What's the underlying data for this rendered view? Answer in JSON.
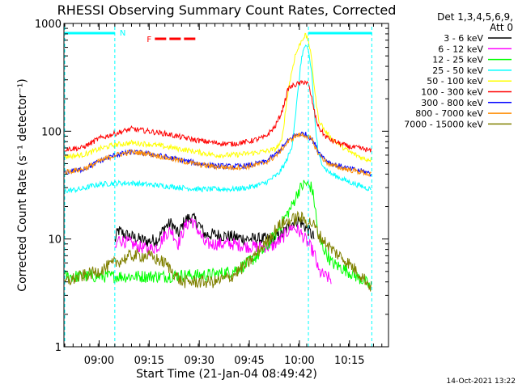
{
  "chart_data": {
    "type": "line",
    "title": "RHESSI Observing Summary Count Rates, Corrected",
    "xlabel": "Start Time (21-Jan-04 08:49:42)",
    "ylabel": "Corrected Count Rate (s⁻¹ detector⁻¹)",
    "yscale": "log",
    "ylim": [
      1,
      1000
    ],
    "xlim": [
      0,
      97
    ],
    "x_unit": "minutes after 08:49:42",
    "y_tick_labels": [
      "1",
      "10",
      "100",
      "1000"
    ],
    "x_tick_labels": [
      "09:00",
      "09:15",
      "09:30",
      "09:45",
      "10:00",
      "10:15"
    ],
    "x_tick_positions": [
      10.3,
      25.3,
      40.3,
      55.3,
      70.3,
      85.3
    ],
    "detector_line1": "Det 1,3,4,5,6,9,",
    "detector_line2": "Att 0",
    "timestamp": "14-Oct-2021 13:22",
    "night_label": "N",
    "flare_label": "F",
    "night_intervals": [
      [
        0,
        15
      ],
      [
        73,
        92
      ]
    ],
    "flare_interval": [
      27,
      40
    ],
    "series": [
      {
        "name": "3 - 6 keV",
        "color": "#000000",
        "x": [
          15,
          16,
          18,
          20,
          22,
          25,
          28,
          30,
          32,
          34,
          36,
          38,
          40,
          42,
          45,
          50,
          55,
          60,
          62,
          65,
          67,
          68,
          70,
          72,
          74,
          75
        ],
        "values": [
          9.5,
          12,
          11,
          10.5,
          10,
          9.5,
          10,
          13,
          14,
          11,
          15,
          16,
          14,
          11,
          11,
          10.5,
          10,
          10,
          10,
          11,
          13,
          14,
          15,
          13,
          11,
          10
        ]
      },
      {
        "name": "6 - 12 keV",
        "color": "#ff00ff",
        "x": [
          15,
          16,
          18,
          20,
          22,
          25,
          28,
          30,
          32,
          34,
          36,
          38,
          40,
          42,
          45,
          50,
          55,
          60,
          62,
          65,
          67,
          68,
          70,
          72,
          74,
          75,
          76,
          78,
          80
        ],
        "values": [
          7.5,
          10,
          9.5,
          9,
          8.5,
          8,
          8.5,
          11,
          12,
          9,
          13,
          15,
          12,
          9,
          9,
          9,
          8.5,
          8.5,
          8.5,
          10,
          12,
          13,
          12,
          10,
          8,
          7,
          5,
          4.5,
          4.2
        ]
      },
      {
        "name": "12 - 25 keV",
        "color": "#00ff00",
        "x": [
          0,
          5,
          10,
          15,
          20,
          25,
          30,
          35,
          40,
          45,
          50,
          55,
          60,
          63,
          65,
          68,
          70,
          72,
          74,
          75,
          76,
          80,
          85,
          90,
          92
        ],
        "values": [
          4.5,
          4.5,
          4.5,
          4.5,
          4.5,
          4.5,
          4.5,
          4.6,
          4.6,
          4.7,
          5,
          6,
          8,
          11,
          14,
          20,
          28,
          33,
          30,
          20,
          10,
          6,
          5,
          4,
          3.5
        ]
      },
      {
        "name": "25 - 50 keV",
        "color": "#00ffff",
        "x": [
          0,
          5,
          8,
          10,
          15,
          20,
          25,
          30,
          35,
          40,
          45,
          50,
          55,
          60,
          64,
          66,
          68,
          70,
          71,
          72,
          73,
          74,
          75,
          76,
          78,
          80,
          85,
          90,
          92
        ],
        "values": [
          28,
          29,
          31,
          32,
          33,
          33,
          32,
          31,
          30,
          29,
          29,
          29,
          30,
          33,
          40,
          50,
          70,
          250,
          500,
          620,
          550,
          350,
          120,
          60,
          45,
          40,
          34,
          30,
          29
        ]
      },
      {
        "name": "50 - 100 keV",
        "color": "#ffff00",
        "x": [
          0,
          5,
          8,
          10,
          15,
          20,
          25,
          30,
          35,
          40,
          45,
          50,
          55,
          60,
          63,
          65,
          67,
          69,
          71,
          72,
          73,
          74,
          75,
          76,
          78,
          80,
          85,
          90,
          92
        ],
        "values": [
          58,
          60,
          64,
          68,
          75,
          78,
          76,
          72,
          68,
          64,
          60,
          60,
          62,
          65,
          68,
          80,
          250,
          500,
          700,
          780,
          700,
          450,
          220,
          130,
          100,
          85,
          65,
          55,
          55
        ]
      },
      {
        "name": "100 - 300 keV",
        "color": "#ff0000",
        "x": [
          0,
          5,
          8,
          10,
          15,
          20,
          25,
          30,
          35,
          40,
          45,
          50,
          55,
          60,
          63,
          65,
          67,
          69,
          71,
          72,
          73,
          74,
          75,
          76,
          78,
          80,
          85,
          90,
          92
        ],
        "values": [
          68,
          70,
          78,
          85,
          95,
          105,
          100,
          95,
          88,
          82,
          78,
          76,
          80,
          88,
          110,
          150,
          250,
          270,
          280,
          290,
          270,
          200,
          140,
          110,
          90,
          82,
          72,
          68,
          65
        ]
      },
      {
        "name": "300 - 800 keV",
        "color": "#0000ff",
        "x": [
          0,
          5,
          8,
          10,
          15,
          20,
          25,
          30,
          35,
          40,
          45,
          50,
          55,
          60,
          63,
          65,
          67,
          69,
          71,
          72,
          73,
          74,
          75,
          76,
          78,
          80,
          85,
          90,
          92
        ],
        "values": [
          42,
          44,
          48,
          52,
          60,
          64,
          62,
          58,
          54,
          50,
          48,
          47,
          48,
          52,
          60,
          70,
          82,
          92,
          95,
          94,
          90,
          85,
          75,
          65,
          55,
          50,
          45,
          42,
          40
        ]
      },
      {
        "name": "800 - 7000 keV",
        "color": "#ff8c00",
        "x": [
          0,
          5,
          8,
          10,
          15,
          20,
          25,
          30,
          35,
          40,
          45,
          50,
          55,
          60,
          63,
          65,
          67,
          69,
          71,
          72,
          73,
          74,
          75,
          76,
          78,
          80,
          85,
          90,
          92
        ],
        "values": [
          42,
          44,
          48,
          52,
          60,
          64,
          62,
          57,
          53,
          49,
          47,
          46,
          47,
          51,
          58,
          68,
          80,
          90,
          93,
          92,
          88,
          83,
          72,
          62,
          53,
          48,
          44,
          41,
          39
        ]
      },
      {
        "name": "7000 - 15000 keV",
        "color": "#808000",
        "x": [
          0,
          5,
          10,
          15,
          20,
          25,
          30,
          35,
          40,
          45,
          50,
          55,
          60,
          63,
          65,
          68,
          70,
          72,
          74,
          75,
          76,
          80,
          85,
          90,
          92
        ],
        "values": [
          4,
          4.5,
          5,
          6,
          7,
          7,
          6,
          4,
          4,
          4,
          4.5,
          6,
          9,
          12,
          14,
          15,
          16,
          15,
          14,
          13,
          11,
          8,
          6,
          4.2,
          3.5
        ]
      }
    ]
  }
}
